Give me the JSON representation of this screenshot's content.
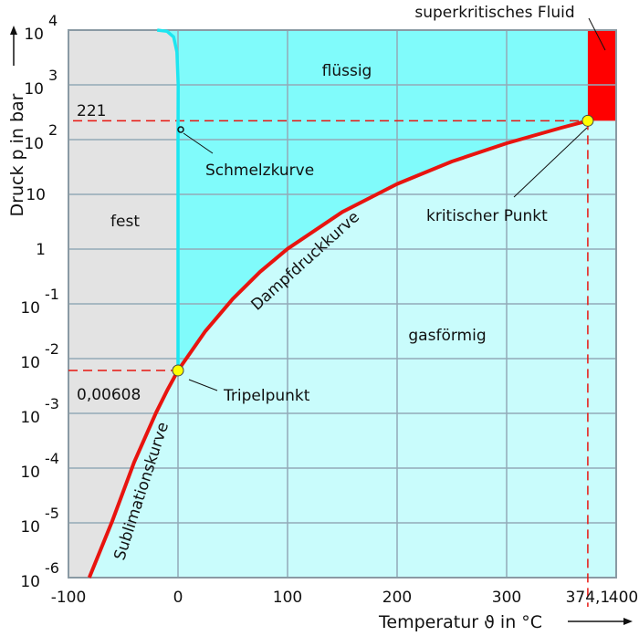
{
  "chart_data": {
    "type": "line",
    "title": "",
    "xlabel": "Temperatur ϑ in °C",
    "ylabel": "Druck p in bar",
    "xlim": [
      -100,
      400
    ],
    "ylim": [
      1e-06,
      10000
    ],
    "yscale": "log",
    "grid": true,
    "x_ticks": [
      "-100",
      "0",
      "100",
      "200",
      "300",
      "374,1",
      "400"
    ],
    "x_tick_values": [
      -100,
      0,
      100,
      200,
      300,
      374.1,
      400
    ],
    "y_ticks": [
      {
        "value": 10000,
        "base": "10",
        "exp": "4"
      },
      {
        "value": 1000,
        "base": "10",
        "exp": "3"
      },
      {
        "value": 100,
        "base": "10",
        "exp": "2"
      },
      {
        "value": 10,
        "base": "10",
        "exp": ""
      },
      {
        "value": 1,
        "base": "1",
        "exp": ""
      },
      {
        "value": 0.1,
        "base": "10",
        "exp": "-1"
      },
      {
        "value": 0.01,
        "base": "10",
        "exp": "-2"
      },
      {
        "value": 0.001,
        "base": "10",
        "exp": "-3"
      },
      {
        "value": 0.0001,
        "base": "10",
        "exp": "-4"
      },
      {
        "value": 1e-05,
        "base": "10",
        "exp": "-5"
      },
      {
        "value": 1e-06,
        "base": "10",
        "exp": "-6"
      }
    ],
    "series": [
      {
        "name": "Sublimationskurve",
        "color": "#e8140f",
        "points": [
          [
            -81,
            1e-06
          ],
          [
            -80,
            5.5e-07
          ],
          [
            -60,
            1.08e-05
          ],
          [
            -40,
            0.000129
          ],
          [
            -20,
            0.00103
          ],
          [
            -10,
            0.0026
          ],
          [
            0,
            0.00608
          ]
        ]
      },
      {
        "name": "Dampfdruckkurve",
        "color": "#e8140f",
        "points": [
          [
            0,
            0.00608
          ],
          [
            25,
            0.0317
          ],
          [
            50,
            0.123
          ],
          [
            75,
            0.386
          ],
          [
            100,
            1.013
          ],
          [
            150,
            4.76
          ],
          [
            200,
            15.5
          ],
          [
            250,
            39.8
          ],
          [
            300,
            85.9
          ],
          [
            350,
            165
          ],
          [
            374.1,
            221
          ]
        ]
      },
      {
        "name": "Schmelzkurve",
        "color": "#1de6f0",
        "points": [
          [
            0,
            0.00608
          ],
          [
            0,
            100
          ],
          [
            0.2,
            1000
          ],
          [
            -1,
            4000
          ],
          [
            -4,
            7500
          ],
          [
            -10,
            9500
          ],
          [
            -19,
            10000
          ]
        ]
      }
    ],
    "points": {
      "triple": {
        "label": "Tripelpunkt",
        "T": 0,
        "p": 0.00608,
        "p_label": "0,00608"
      },
      "critical": {
        "label": "kritischer Punkt",
        "T": 374.1,
        "p": 221,
        "p_label": "221"
      }
    },
    "regions": {
      "solid": {
        "label": "fest",
        "color": "#e3e3e3"
      },
      "liquid": {
        "label": "flüssig",
        "color": "#80fbfb"
      },
      "gas": {
        "label": "gasförmig",
        "color": "#c9fcfc"
      },
      "supercritical": {
        "label": "superkritisches Fluid",
        "color": "#ff0000"
      }
    },
    "annotations": {
      "melt": "Schmelzkurve",
      "vapor": "Dampfdruckkurve",
      "sublimation": "Sublimationskurve"
    },
    "colors": {
      "grid": "#93aab8",
      "dashed": "#e8140f",
      "point": "#ffff00"
    }
  }
}
